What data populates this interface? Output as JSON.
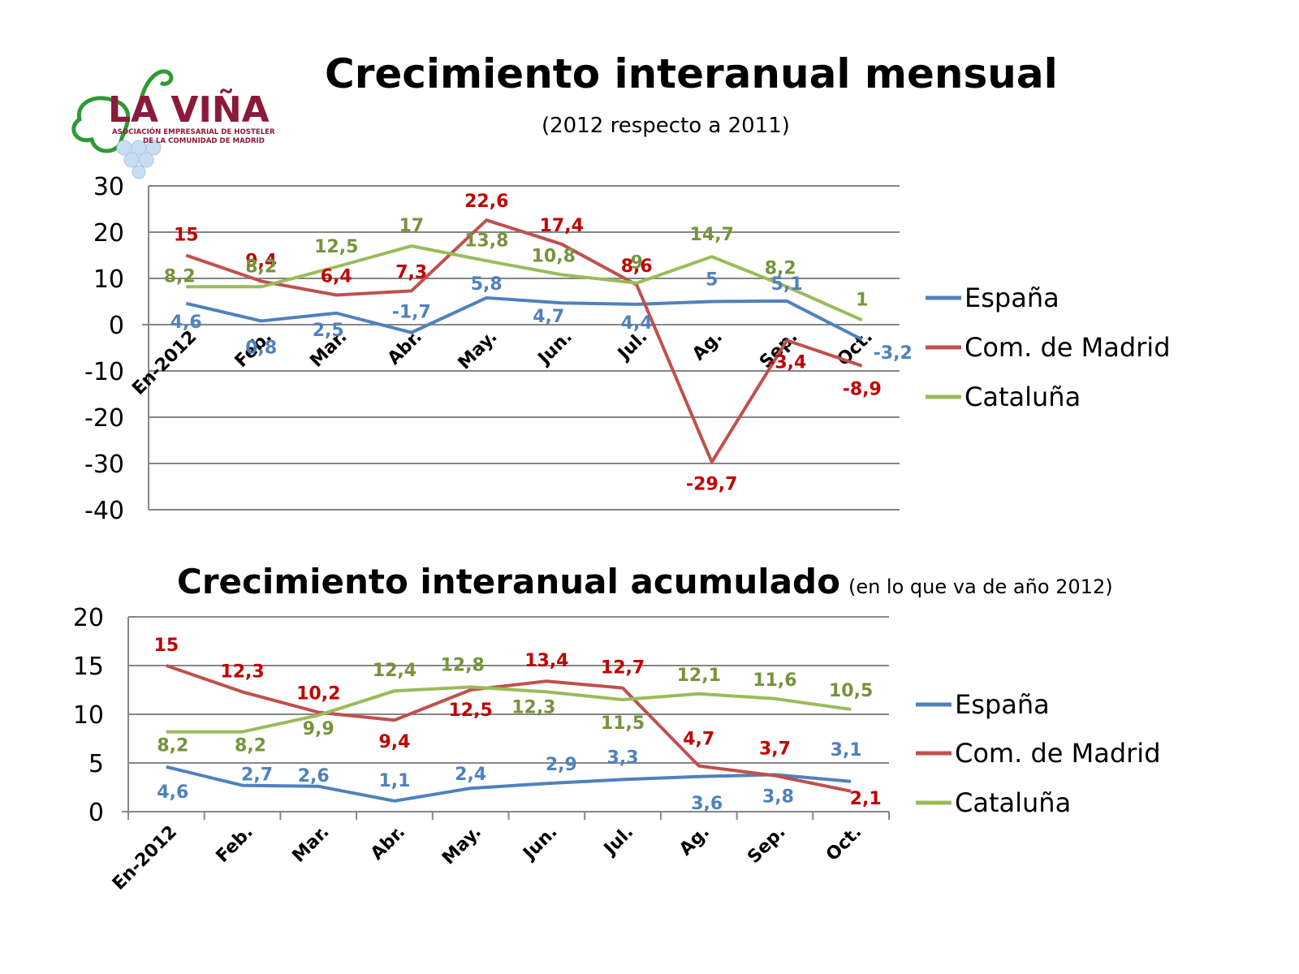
{
  "logo": {
    "name": "LA VIÑA",
    "line1": "ASOCIACIÓN EMPRESARIAL DE HOSTELERÍA",
    "line2": "DE LA COMUNIDAD DE MADRID",
    "colors": {
      "text": "#8b1a3a",
      "leaf": "#2e9a35",
      "grapes": "#b9d3ee"
    }
  },
  "colors": {
    "espana": "#4f81bd",
    "madrid": "#c0504d",
    "cataluna": "#9bbb59",
    "espana_label": "#4f81bd",
    "madrid_label": "#c00000",
    "cataluna_label": "#77933c"
  },
  "chart_data": [
    {
      "type": "line",
      "title": "Crecimiento interanual mensual",
      "subtitle": "(2012 respecto a 2011)",
      "categories": [
        "En-2012",
        "Feb.",
        "Mar.",
        "Abr.",
        "May.",
        "Jun.",
        "Jul.",
        "Ag.",
        "Sep.",
        "Oct."
      ],
      "ylim": [
        -40,
        30
      ],
      "yticks": [
        30,
        20,
        10,
        0,
        -10,
        -20,
        -30,
        -40
      ],
      "grid": true,
      "legend": "right",
      "series": [
        {
          "name": "España",
          "values": [
            4.6,
            0.8,
            2.5,
            -1.7,
            5.8,
            4.7,
            4.4,
            5,
            5.1,
            -3.2
          ],
          "labels": [
            "4,6",
            "0,8",
            "2,5",
            "-1,7",
            "5,8",
            "4,7",
            "4,4",
            "5",
            "5,1",
            "-3,2"
          ]
        },
        {
          "name": "Com. de Madrid",
          "values": [
            15,
            9.4,
            6.4,
            7.3,
            22.6,
            17.4,
            8.6,
            -29.7,
            -3.4,
            -8.9
          ],
          "labels": [
            "15",
            "9,4",
            "6,4",
            "7,3",
            "22,6",
            "17,4",
            "8,6",
            "-29,7",
            "-3,4",
            "-8,9"
          ]
        },
        {
          "name": "Cataluña",
          "values": [
            8.2,
            8.2,
            12.5,
            17,
            13.8,
            10.8,
            9,
            14.7,
            8.2,
            1
          ],
          "labels": [
            "8,2",
            "8,2",
            "12,5",
            "17",
            "13,8",
            "10,8",
            "9",
            "14,7",
            "8,2",
            "1"
          ]
        }
      ]
    },
    {
      "type": "line",
      "title": "Crecimiento interanual acumulado",
      "subtitle": "(en lo que va de año 2012)",
      "categories": [
        "En-2012",
        "Feb.",
        "Mar.",
        "Abr.",
        "May.",
        "Jun.",
        "Jul.",
        "Ag.",
        "Sep.",
        "Oct."
      ],
      "ylim": [
        0,
        20
      ],
      "yticks": [
        20,
        15,
        10,
        5,
        0
      ],
      "grid": true,
      "legend": "right",
      "series": [
        {
          "name": "España",
          "values": [
            4.6,
            2.7,
            2.6,
            1.1,
            2.4,
            2.9,
            3.3,
            3.6,
            3.8,
            3.1
          ],
          "labels": [
            "4,6",
            "2,7",
            "2,6",
            "1,1",
            "2,4",
            "2,9",
            "3,3",
            "3,6",
            "3,8",
            "3,1"
          ]
        },
        {
          "name": "Com. de Madrid",
          "values": [
            15,
            12.3,
            10.2,
            9.4,
            12.5,
            13.4,
            12.7,
            4.7,
            3.7,
            2.1
          ],
          "labels": [
            "15",
            "12,3",
            "10,2",
            "9,4",
            "12,5",
            "13,4",
            "12,7",
            "4,7",
            "3,7",
            "2,1"
          ]
        },
        {
          "name": "Cataluña",
          "values": [
            8.2,
            8.2,
            9.9,
            12.4,
            12.8,
            12.3,
            11.5,
            12.1,
            11.6,
            10.5
          ],
          "labels": [
            "8,2",
            "8,2",
            "9,9",
            "12,4",
            "12,8",
            "12,3",
            "11,5",
            "12,1",
            "11,6",
            "10,5"
          ]
        }
      ]
    }
  ]
}
